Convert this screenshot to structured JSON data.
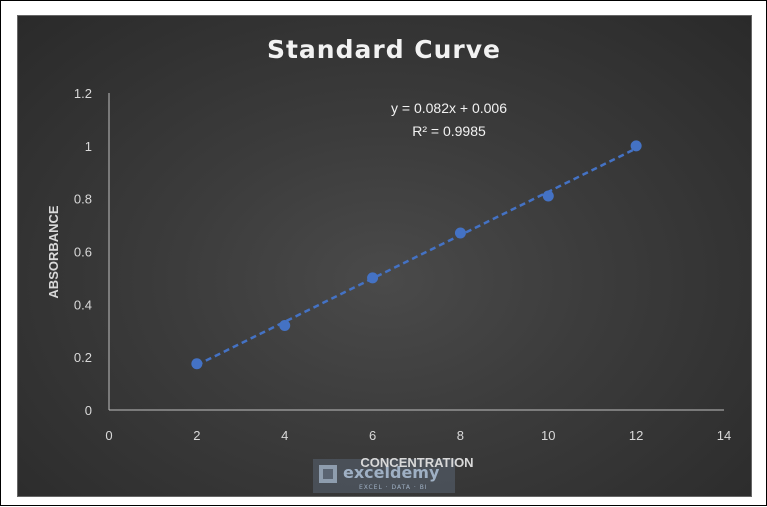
{
  "chart_data": {
    "type": "scatter",
    "title": "Standard Curve",
    "xlabel": "CONCENTRATION",
    "ylabel": "ABSORBANCE",
    "xlim": [
      0,
      14
    ],
    "ylim": [
      0,
      1.2
    ],
    "x_ticks": [
      "0",
      "2",
      "4",
      "6",
      "8",
      "10",
      "12",
      "14"
    ],
    "y_ticks": [
      "0",
      "0.2",
      "0.4",
      "0.6",
      "0.8",
      "1",
      "1.2"
    ],
    "grid": false,
    "series": [
      {
        "x": [
          2,
          4,
          6,
          8,
          10,
          12
        ],
        "y": [
          0.175,
          0.32,
          0.5,
          0.67,
          0.81,
          1.0
        ],
        "color": "#4472c4"
      }
    ],
    "trendline": {
      "type": "linear",
      "slope": 0.082,
      "intercept": 0.006,
      "color": "#4472c4",
      "style": "dashed"
    },
    "annotations": [
      "y = 0.082x + 0.006",
      "R² = 0.9985"
    ]
  },
  "watermark": {
    "name": "exceldemy",
    "tagline": "EXCEL · DATA · BI"
  },
  "colors": {
    "background": "#3a3a3a",
    "text": "#d9d9d9",
    "axis": "#bfbfbf",
    "marker": "#4472c4"
  }
}
